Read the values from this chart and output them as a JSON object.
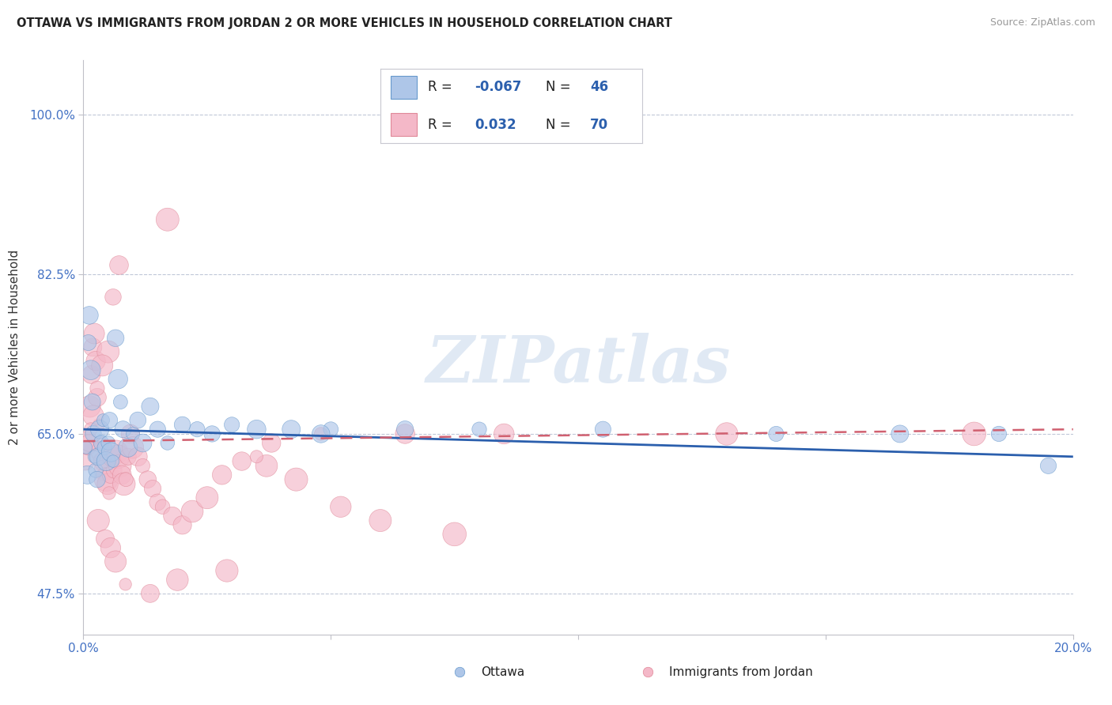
{
  "title": "OTTAWA VS IMMIGRANTS FROM JORDAN 2 OR MORE VEHICLES IN HOUSEHOLD CORRELATION CHART",
  "source": "Source: ZipAtlas.com",
  "ylabel": "2 or more Vehicles in Household",
  "xlim": [
    0.0,
    20.0
  ],
  "ylim": [
    43.0,
    106.0
  ],
  "yticks": [
    47.5,
    65.0,
    82.5,
    100.0
  ],
  "xticks": [
    0.0,
    5.0,
    10.0,
    15.0,
    20.0
  ],
  "ytick_labels": [
    "47.5%",
    "65.0%",
    "82.5%",
    "100.0%"
  ],
  "xtick_labels": [
    "0.0%",
    "",
    "",
    "",
    "20.0%"
  ],
  "legend_labels": [
    "Ottawa",
    "Immigrants from Jordan"
  ],
  "blue_color": "#aec6e8",
  "pink_color": "#f4b8c8",
  "blue_edge_color": "#6699cc",
  "pink_edge_color": "#e08898",
  "blue_line_color": "#2b5fad",
  "pink_line_color": "#d06070",
  "watermark": "ZIPatlas",
  "ottawa_x": [
    0.05,
    0.08,
    0.1,
    0.12,
    0.15,
    0.18,
    0.2,
    0.22,
    0.25,
    0.28,
    0.3,
    0.33,
    0.36,
    0.4,
    0.43,
    0.46,
    0.5,
    0.53,
    0.56,
    0.6,
    0.65,
    0.7,
    0.75,
    0.8,
    0.9,
    1.0,
    1.1,
    1.2,
    1.35,
    1.5,
    1.7,
    2.0,
    2.3,
    2.6,
    3.0,
    3.5,
    4.2,
    5.0,
    6.5,
    8.0,
    10.5,
    14.0,
    16.5,
    18.5,
    19.5,
    4.8
  ],
  "ottawa_y": [
    63.5,
    60.5,
    75.0,
    78.0,
    72.0,
    68.5,
    65.0,
    62.5,
    61.0,
    60.0,
    62.5,
    65.5,
    64.0,
    66.5,
    63.5,
    62.0,
    64.0,
    66.5,
    63.0,
    62.0,
    75.5,
    71.0,
    68.5,
    65.5,
    63.5,
    65.0,
    66.5,
    64.0,
    68.0,
    65.5,
    64.0,
    66.0,
    65.5,
    65.0,
    66.0,
    65.5,
    65.5,
    65.5,
    65.5,
    65.5,
    65.5,
    65.0,
    65.0,
    65.0,
    61.5,
    65.0
  ],
  "jordan_x": [
    0.04,
    0.07,
    0.1,
    0.13,
    0.16,
    0.19,
    0.22,
    0.25,
    0.28,
    0.31,
    0.34,
    0.37,
    0.4,
    0.43,
    0.46,
    0.49,
    0.52,
    0.55,
    0.58,
    0.62,
    0.66,
    0.7,
    0.74,
    0.78,
    0.82,
    0.86,
    0.9,
    0.95,
    1.0,
    1.1,
    1.2,
    1.3,
    1.4,
    1.5,
    1.6,
    1.8,
    2.0,
    2.2,
    2.5,
    2.8,
    3.2,
    3.7,
    4.3,
    5.2,
    6.0,
    7.5,
    3.5,
    1.7,
    0.6,
    0.72,
    0.5,
    0.38,
    0.28,
    0.2,
    0.15,
    0.12,
    0.3,
    0.44,
    0.55,
    0.65,
    2.9,
    1.9,
    0.85,
    1.35,
    3.8,
    4.8,
    6.5,
    8.5,
    13.0,
    18.0
  ],
  "jordan_y": [
    62.0,
    64.0,
    63.5,
    68.0,
    71.5,
    74.5,
    76.0,
    73.0,
    69.0,
    66.0,
    64.0,
    63.0,
    62.0,
    61.0,
    60.0,
    59.5,
    58.5,
    60.5,
    62.5,
    61.0,
    63.0,
    62.5,
    61.5,
    60.5,
    59.5,
    60.0,
    62.5,
    65.0,
    63.5,
    62.5,
    61.5,
    60.0,
    59.0,
    57.5,
    57.0,
    56.0,
    55.0,
    56.5,
    58.0,
    60.5,
    62.0,
    61.5,
    60.0,
    57.0,
    55.5,
    54.0,
    62.5,
    88.5,
    80.0,
    83.5,
    74.0,
    72.5,
    70.0,
    67.0,
    65.5,
    64.0,
    55.5,
    53.5,
    52.5,
    51.0,
    50.0,
    49.0,
    48.5,
    47.5,
    64.0,
    65.0,
    65.0,
    65.0,
    65.0,
    65.0
  ],
  "blue_line_x0": 0.0,
  "blue_line_y0": 65.5,
  "blue_line_x1": 20.0,
  "blue_line_y1": 62.5,
  "pink_line_x0": 0.0,
  "pink_line_y0": 64.2,
  "pink_line_x1": 20.0,
  "pink_line_y1": 65.5
}
